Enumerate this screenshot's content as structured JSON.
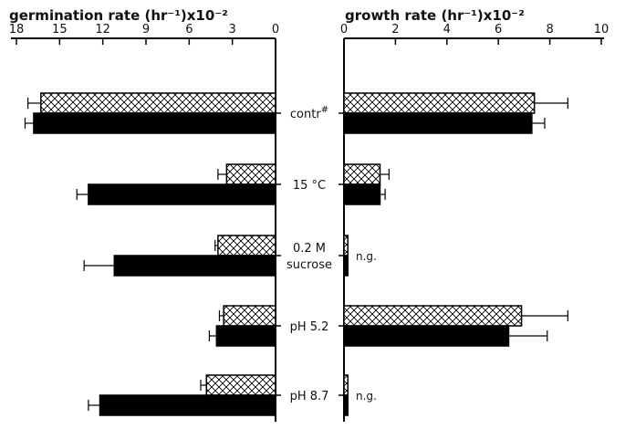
{
  "chart_data": [
    {
      "type": "bar",
      "orientation": "horizontal",
      "direction": "right-to-left",
      "title": "germination rate (hr⁻¹)x10⁻²",
      "xlim": [
        18,
        0
      ],
      "ticks": [
        18,
        15,
        12,
        9,
        6,
        3,
        0
      ],
      "tick_labels": [
        "18",
        "15",
        "12",
        "9",
        "6",
        "3",
        "0"
      ],
      "categories": [
        "contr#",
        "15 °C",
        "0.2 M sucrose",
        "pH 5.2",
        "pH 8.7"
      ],
      "category_labels": [
        {
          "line1": "contr",
          "sup": "#"
        },
        {
          "line1": "15 °C"
        },
        {
          "line1": "0.2 M",
          "line2": "sucrose"
        },
        {
          "line1": "pH 5.2"
        },
        {
          "line1": "pH 8.7"
        }
      ],
      "series": [
        {
          "pattern": "crosshatch",
          "values": [
            16.3,
            3.4,
            4.0,
            3.6,
            4.8
          ],
          "errors": [
            0.9,
            0.6,
            0.2,
            0.3,
            0.4
          ]
        },
        {
          "pattern": "solid",
          "values": [
            16.8,
            13.0,
            11.2,
            4.1,
            12.2
          ],
          "errors": [
            0.6,
            0.8,
            2.1,
            0.5,
            0.8
          ]
        }
      ]
    },
    {
      "type": "bar",
      "orientation": "horizontal",
      "title": "growth rate (hr⁻¹)x10⁻²",
      "xlim": [
        0,
        10
      ],
      "ticks": [
        0,
        2,
        4,
        6,
        8,
        10
      ],
      "tick_labels": [
        "0",
        "2",
        "4",
        "6",
        "8",
        "10"
      ],
      "categories": [
        "contr#",
        "15 °C",
        "0.2 M sucrose",
        "pH 5.2",
        "pH 8.7"
      ],
      "series": [
        {
          "pattern": "crosshatch",
          "values": [
            7.4,
            1.4,
            0.15,
            6.9,
            0.15
          ],
          "errors": [
            1.3,
            0.35,
            0,
            1.8,
            0
          ]
        },
        {
          "pattern": "solid",
          "values": [
            7.3,
            1.4,
            0.15,
            6.4,
            0.15
          ],
          "errors": [
            0.5,
            0.2,
            0,
            1.5,
            0
          ]
        }
      ],
      "annotations": [
        {
          "category": "0.2 M sucrose",
          "text": "n.g."
        },
        {
          "category": "pH 8.7",
          "text": "n.g."
        }
      ]
    }
  ]
}
